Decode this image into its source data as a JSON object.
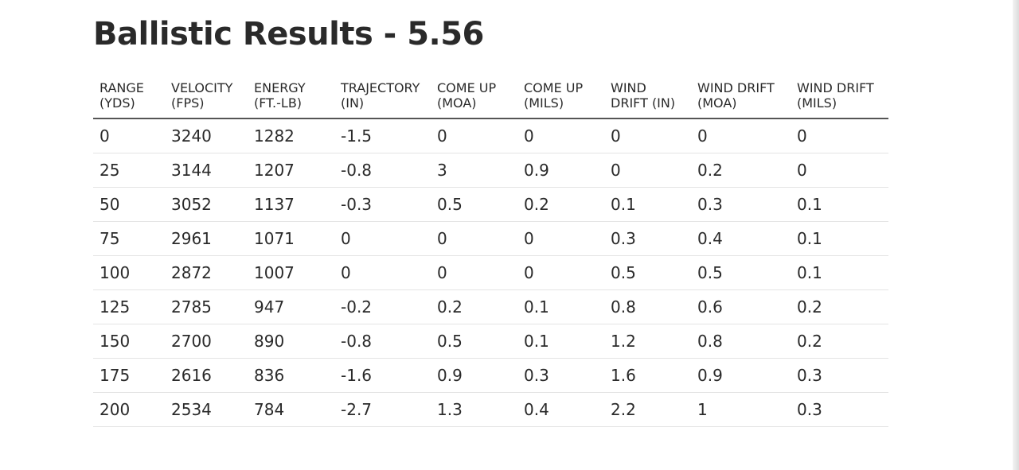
{
  "title": "Ballistic Results - 5.56",
  "columns": [
    {
      "line1": "RANGE",
      "line2": "(YDS)"
    },
    {
      "line1": "VELOCITY",
      "line2": "(FPS)"
    },
    {
      "line1": "ENERGY",
      "line2": "(FT.-LB)"
    },
    {
      "line1": "TRAJECTORY",
      "line2": "(IN)"
    },
    {
      "line1": "COME UP",
      "line2": "(MOA)"
    },
    {
      "line1": "COME UP",
      "line2": "(MILS)"
    },
    {
      "line1": "WIND",
      "line2": "DRIFT (IN)"
    },
    {
      "line1": "WIND DRIFT",
      "line2": "(MOA)"
    },
    {
      "line1": "WIND DRIFT",
      "line2": "(MILS)"
    }
  ],
  "rows": [
    [
      "0",
      "3240",
      "1282",
      "-1.5",
      "0",
      "0",
      "0",
      "0",
      "0"
    ],
    [
      "25",
      "3144",
      "1207",
      "-0.8",
      "3",
      "0.9",
      "0",
      "0.2",
      "0"
    ],
    [
      "50",
      "3052",
      "1137",
      "-0.3",
      "0.5",
      "0.2",
      "0.1",
      "0.3",
      "0.1"
    ],
    [
      "75",
      "2961",
      "1071",
      "0",
      "0",
      "0",
      "0.3",
      "0.4",
      "0.1"
    ],
    [
      "100",
      "2872",
      "1007",
      "0",
      "0",
      "0",
      "0.5",
      "0.5",
      "0.1"
    ],
    [
      "125",
      "2785",
      "947",
      "-0.2",
      "0.2",
      "0.1",
      "0.8",
      "0.6",
      "0.2"
    ],
    [
      "150",
      "2700",
      "890",
      "-0.8",
      "0.5",
      "0.1",
      "1.2",
      "0.8",
      "0.2"
    ],
    [
      "175",
      "2616",
      "836",
      "-1.6",
      "0.9",
      "0.3",
      "1.6",
      "0.9",
      "0.3"
    ],
    [
      "200",
      "2534",
      "784",
      "-2.7",
      "1.3",
      "0.4",
      "2.2",
      "1",
      "0.3"
    ]
  ]
}
